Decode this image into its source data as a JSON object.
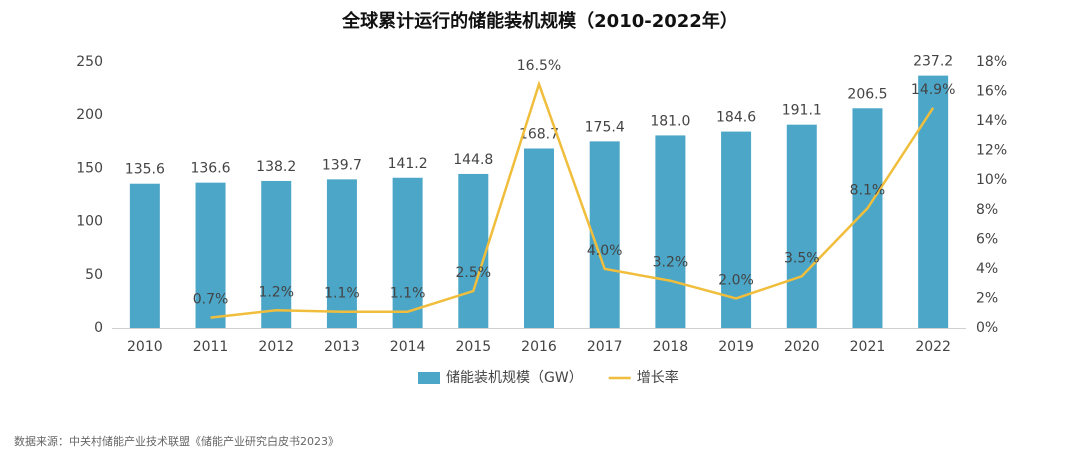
{
  "chart_data": {
    "type": "bar",
    "title": "全球累计运行的储能装机规模（2010-2022年）",
    "categories": [
      "2010",
      "2011",
      "2012",
      "2013",
      "2014",
      "2015",
      "2016",
      "2017",
      "2018",
      "2019",
      "2020",
      "2021",
      "2022"
    ],
    "series": [
      {
        "name": "储能装机规模（GW）",
        "type": "bar",
        "color": "#4ba6c8",
        "values": [
          135.6,
          136.6,
          138.2,
          139.7,
          141.2,
          144.8,
          168.7,
          175.4,
          181.0,
          184.6,
          191.1,
          206.5,
          237.2
        ],
        "value_labels": [
          "135.6",
          "136.6",
          "138.2",
          "139.7",
          "141.2",
          "144.8",
          "168.7",
          "175.4",
          "181.0",
          "184.6",
          "191.1",
          "206.5",
          "237.2"
        ]
      },
      {
        "name": "增长率",
        "type": "line",
        "axis": "y2",
        "color": "#f0be3c",
        "values": [
          null,
          0.7,
          1.2,
          1.1,
          1.1,
          2.5,
          16.5,
          4.0,
          3.2,
          2.0,
          3.5,
          8.1,
          14.9
        ],
        "value_labels": [
          null,
          "0.7%",
          "1.2%",
          "1.1%",
          "1.1%",
          "2.5%",
          "16.5%",
          "4.0%",
          "3.2%",
          "2.0%",
          "3.5%",
          "8.1%",
          "14.9%"
        ]
      }
    ],
    "ylim": [
      0,
      250
    ],
    "yticks": [
      0,
      50,
      100,
      150,
      200,
      250
    ],
    "y2lim": [
      0,
      18
    ],
    "y2ticks": [
      {
        "value": 0,
        "label": "0%"
      },
      {
        "value": 2,
        "label": "2%"
      },
      {
        "value": 4,
        "label": "4%"
      },
      {
        "value": 6,
        "label": "6%"
      },
      {
        "value": 8,
        "label": "8%"
      },
      {
        "value": 10,
        "label": "10%"
      },
      {
        "value": 12,
        "label": "12%"
      },
      {
        "value": 14,
        "label": "14%"
      },
      {
        "value": 16,
        "label": "16%"
      },
      {
        "value": 18,
        "label": "18%"
      }
    ],
    "grid": false,
    "legend": "bottom",
    "source": "数据来源：中关村储能产业技术联盟《储能产业研究白皮书2023》"
  }
}
